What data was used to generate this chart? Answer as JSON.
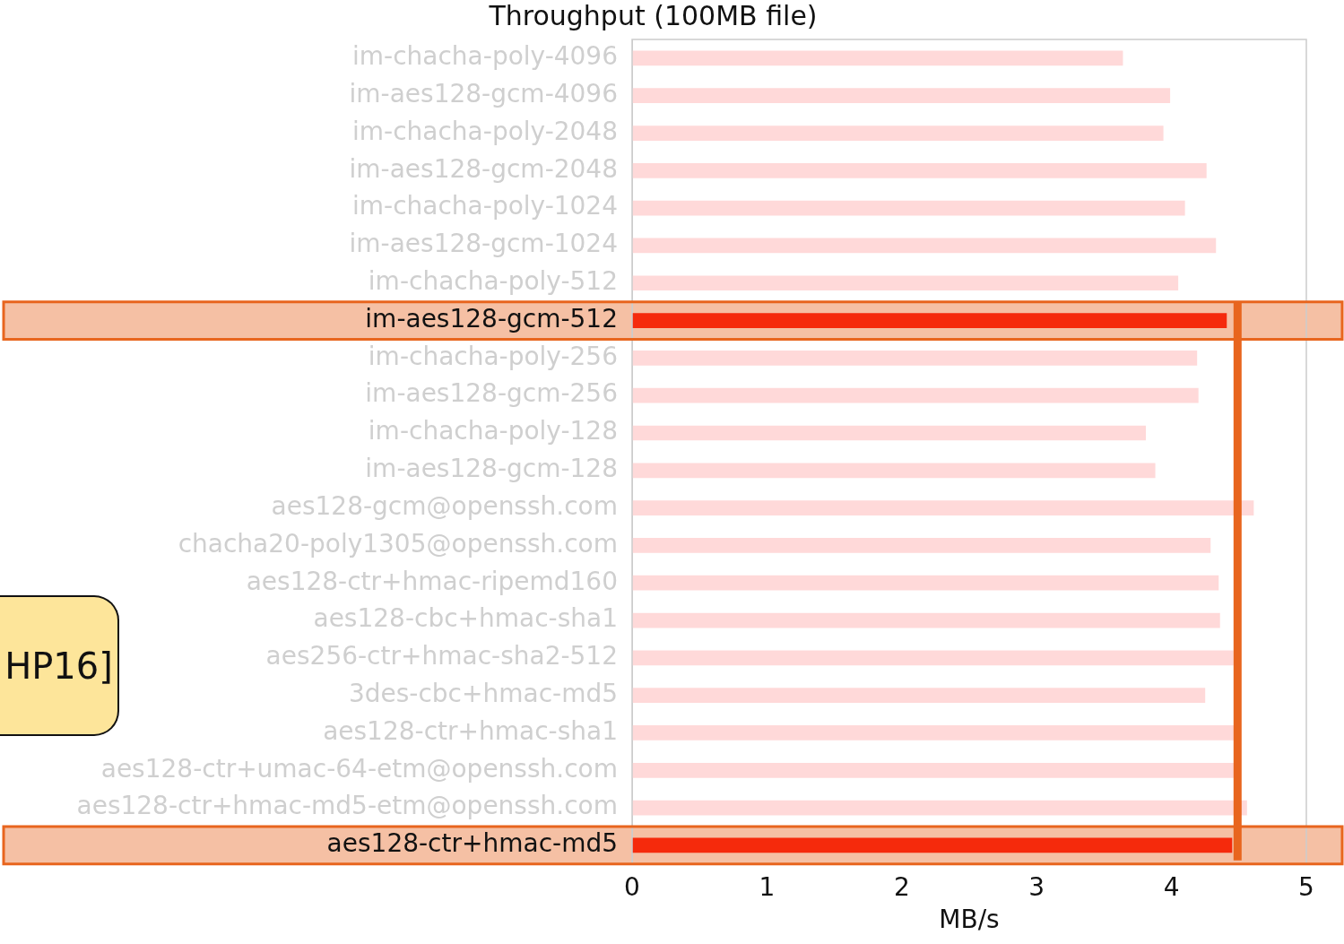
{
  "chart_data": {
    "type": "bar",
    "orientation": "horizontal",
    "title": "Throughput (100MB file)",
    "xlabel": "MB/s",
    "categories": [
      "im-chacha-poly-4096",
      "im-aes128-gcm-4096",
      "im-chacha-poly-2048",
      "im-aes128-gcm-2048",
      "im-chacha-poly-1024",
      "im-aes128-gcm-1024",
      "im-chacha-poly-512",
      "im-aes128-gcm-512",
      "im-chacha-poly-256",
      "im-aes128-gcm-256",
      "im-chacha-poly-128",
      "im-aes128-gcm-128",
      "aes128-gcm@openssh.com",
      "chacha20-poly1305@openssh.com",
      "aes128-ctr+hmac-ripemd160",
      "aes128-cbc+hmac-sha1",
      "aes256-ctr+hmac-sha2-512",
      "3des-cbc+hmac-md5",
      "aes128-ctr+hmac-sha1",
      "aes128-ctr+umac-64-etm@openssh.com",
      "aes128-ctr+hmac-md5-etm@openssh.com",
      "aes128-ctr+hmac-md5"
    ],
    "values": [
      3.64,
      3.99,
      3.94,
      4.26,
      4.1,
      4.33,
      4.05,
      4.41,
      4.19,
      4.2,
      3.81,
      3.88,
      4.61,
      4.29,
      4.35,
      4.36,
      4.46,
      4.25,
      4.48,
      4.48,
      4.56,
      4.45
    ],
    "colors": [
      "#ffd9d9",
      "#ffd9d9",
      "#ffd9d9",
      "#ffd9d9",
      "#ffd9d9",
      "#ffd9d9",
      "#ffd9d9",
      "#f52a0c",
      "#ffd9d9",
      "#ffd9d9",
      "#ffd9d9",
      "#ffd9d9",
      "#ffd9d9",
      "#ffd9d9",
      "#ffd9d9",
      "#ffd9d9",
      "#ffd9d9",
      "#ffd9d9",
      "#ffd9d9",
      "#ffd9d9",
      "#ffd9d9",
      "#f52a0c"
    ],
    "xlim": [
      0,
      5
    ],
    "xticks": [
      0,
      1,
      2,
      3,
      4,
      5
    ],
    "grid": false,
    "bands": [
      {
        "axis": "y",
        "from": "im-aes128-gcm-512",
        "to": "im-aes128-gcm-512",
        "color": "#f5c0a4"
      },
      {
        "axis": "y",
        "from": "aes128-ctr+hmac-md5",
        "to": "aes128-ctr+hmac-md5",
        "color": "#f5c0a4"
      }
    ],
    "ref_lines": [
      {
        "axis": "x",
        "value": 4.49,
        "color": "#e8651e"
      }
    ],
    "annotations": [
      "HP16]"
    ]
  }
}
